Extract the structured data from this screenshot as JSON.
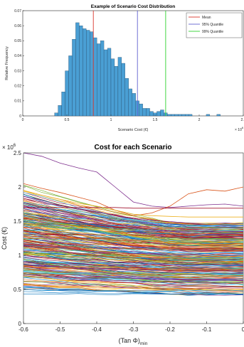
{
  "chart_data": [
    {
      "type": "bar",
      "title": "Example of Scenario Cost Distribution",
      "xlabel": "Scenario Cost (€)",
      "ylabel": "Relative Frequency",
      "x_exponent_label": "× 10^6",
      "xlim": [
        0,
        2.5
      ],
      "ylim": [
        0,
        0.07
      ],
      "x_ticks": [
        "0",
        "0.5",
        "1",
        "1.5",
        "2",
        "2.5"
      ],
      "y_ticks": [
        "0",
        "0.01",
        "0.02",
        "0.03",
        "0.04",
        "0.05",
        "0.06",
        "0.07"
      ],
      "bar_color": "#4a9fd4",
      "bin_width": 0.04,
      "bin_starts": [
        0.36,
        0.4,
        0.44,
        0.48,
        0.52,
        0.56,
        0.6,
        0.64,
        0.68,
        0.72,
        0.76,
        0.8,
        0.84,
        0.88,
        0.92,
        0.96,
        1.0,
        1.04,
        1.08,
        1.12,
        1.16,
        1.2,
        1.24,
        1.28,
        1.32,
        1.36,
        1.4,
        1.44,
        1.48,
        1.52,
        1.56,
        1.6,
        1.64,
        1.68,
        1.72,
        1.76,
        1.8,
        1.84,
        1.88,
        2.08,
        2.2
      ],
      "values": [
        0.002,
        0.007,
        0.016,
        0.03,
        0.04,
        0.051,
        0.062,
        0.06,
        0.058,
        0.057,
        0.056,
        0.052,
        0.048,
        0.05,
        0.044,
        0.045,
        0.038,
        0.033,
        0.039,
        0.035,
        0.025,
        0.018,
        0.015,
        0.01,
        0.008,
        0.005,
        0.005,
        0.003,
        0.002,
        0.003,
        0.004,
        0.002,
        0.001,
        0.001,
        0.001,
        0.001,
        0.001,
        0.001,
        0.001,
        0.001,
        0.001
      ],
      "vlines": [
        {
          "name": "Mean",
          "x": 0.8,
          "color": "#d9362b"
        },
        {
          "name": "95% Quantile",
          "x": 1.3,
          "color": "#6060d0"
        },
        {
          "name": "99% Quantile",
          "x": 1.62,
          "color": "#2ed12e"
        }
      ],
      "legend_position": "top-right",
      "grid": false
    },
    {
      "type": "line",
      "title": "Cost for each Scenario",
      "xlabel": "(Tan Φ)",
      "xlabel_sub": "min",
      "ylabel": "Cost (€)",
      "y_exponent_label": "× 10^6",
      "xlim": [
        -0.6,
        0
      ],
      "ylim": [
        0,
        2.5
      ],
      "x_ticks": [
        "-0.6",
        "-0.5",
        "-0.4",
        "-0.3",
        "-0.2",
        "-0.1",
        "0"
      ],
      "y_ticks": [
        "0",
        "0.5",
        "1",
        "1.5",
        "2",
        "2.5"
      ],
      "x": [
        -0.6,
        -0.55,
        -0.5,
        -0.45,
        -0.4,
        -0.35,
        -0.3,
        -0.25,
        -0.2,
        -0.15,
        -0.1,
        -0.05,
        0
      ],
      "series_count_estimate": 300,
      "highlighted_series": [
        {
          "color": "#7e2f8e",
          "values": [
            2.5,
            2.45,
            2.35,
            2.28,
            2.22,
            2.0,
            1.78,
            1.72,
            1.7,
            1.72,
            1.74,
            1.75,
            1.72
          ]
        },
        {
          "color": "#d95319",
          "values": [
            2.05,
            1.98,
            1.92,
            1.85,
            1.78,
            1.66,
            1.58,
            1.62,
            1.72,
            1.9,
            1.96,
            1.94,
            2.0
          ]
        },
        {
          "color": "#a2142f",
          "values": [
            1.7,
            1.7,
            1.7,
            1.7,
            1.7,
            1.7,
            1.69,
            1.69,
            1.69,
            1.69,
            1.69,
            1.69,
            1.69
          ]
        },
        {
          "color": "#edb120",
          "values": [
            1.95,
            1.88,
            1.82,
            1.76,
            1.72,
            1.66,
            1.6,
            1.58,
            1.57,
            1.56,
            1.56,
            1.56,
            1.56
          ]
        }
      ],
      "palette": [
        "#0072bd",
        "#d95319",
        "#edb120",
        "#7e2f8e",
        "#77ac30",
        "#4dbeee",
        "#a2142f"
      ],
      "grid": false
    }
  ]
}
